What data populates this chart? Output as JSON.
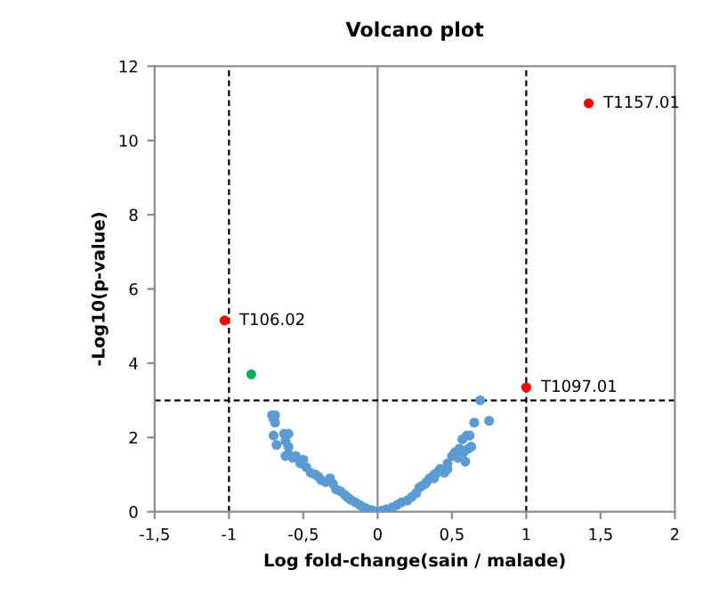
{
  "chart_data": {
    "type": "scatter",
    "title": "Volcano plot",
    "xlabel": "Log fold-change(sain / malade)",
    "ylabel": "-Log10(p-value)",
    "xlim": [
      -1.5,
      2
    ],
    "ylim": [
      0,
      12
    ],
    "xticks": [
      {
        "value": -1.5,
        "label": "-1,5"
      },
      -1,
      {
        "value": -0.5,
        "label": "-0,5"
      },
      0,
      {
        "value": 0.5,
        "label": "0,5"
      },
      1,
      {
        "value": 1.5,
        "label": "1,5"
      },
      2
    ],
    "yticks": [
      0,
      2,
      4,
      6,
      8,
      10,
      12
    ],
    "grid": false,
    "legend": false,
    "marker": "circle",
    "series": [
      {
        "color": "#5b9bd5",
        "x": [
          -0.71,
          -0.69,
          -0.7,
          -0.69,
          -0.7,
          -0.68,
          -0.63,
          -0.6,
          -0.62,
          -0.6,
          -0.6,
          -0.62,
          -0.57,
          -0.55,
          -0.52,
          -0.5,
          -0.48,
          -0.45,
          -0.42,
          -0.4,
          -0.38,
          -0.35,
          -0.32,
          -0.3,
          -0.28,
          -0.25,
          -0.22,
          -0.2,
          -0.18,
          -0.15,
          -0.12,
          -0.1,
          -0.08,
          -0.05,
          -0.03,
          0,
          0.03,
          0.06,
          0.1,
          0.13,
          0.16,
          0.2,
          0.23,
          0.26,
          0.28,
          0.3,
          0.33,
          0.35,
          0.38,
          0.4,
          0.42,
          0.45,
          0.47,
          0.5,
          0.52,
          0.55,
          0.54,
          0.58,
          0.6,
          0.62,
          0.61,
          0.63,
          0.57,
          0.59,
          0.65,
          0.69,
          0.75,
          0.47,
          0.38,
          0.32
        ],
        "values": [
          2.6,
          2.6,
          2.5,
          2.4,
          2.05,
          1.8,
          2.1,
          2.1,
          1.9,
          1.75,
          1.55,
          1.5,
          1.45,
          1.5,
          1.3,
          1.4,
          1.2,
          1.05,
          1.0,
          0.95,
          0.85,
          0.8,
          0.9,
          0.75,
          0.6,
          0.55,
          0.45,
          0.38,
          0.32,
          0.25,
          0.18,
          0.13,
          0.1,
          0.05,
          0.03,
          0,
          0.03,
          0.07,
          0.12,
          0.18,
          0.25,
          0.3,
          0.4,
          0.5,
          0.65,
          0.7,
          0.8,
          0.9,
          1.0,
          1.05,
          1.15,
          1.05,
          1.3,
          1.5,
          1.6,
          1.7,
          1.45,
          1.6,
          2.05,
          2.05,
          1.7,
          1.75,
          1.95,
          1.35,
          2.4,
          3.0,
          2.45,
          1.15,
          0.9,
          0.75
        ]
      },
      {
        "color": "#ff0000",
        "x": [
          -1.03,
          1.0,
          1.42
        ],
        "values": [
          5.15,
          3.35,
          11.0
        ]
      },
      {
        "color": "#00b050",
        "x": [
          -0.85
        ],
        "values": [
          3.7
        ]
      }
    ],
    "ref_lines": [
      {
        "axis": "x",
        "value": 0,
        "color": "#8c8c8c",
        "line_style": "solid"
      },
      {
        "axis": "x",
        "value": -1,
        "color": "#000000",
        "line_style": "dashed"
      },
      {
        "axis": "x",
        "value": 1,
        "color": "#000000",
        "line_style": "dashed"
      },
      {
        "axis": "y",
        "value": 3,
        "color": "#000000",
        "line_style": "dashed"
      }
    ],
    "annotations": [
      {
        "text": "T106.02",
        "x": -1.03,
        "y": 5.15
      },
      {
        "text": "T1097.01",
        "x": 1.0,
        "y": 3.35
      },
      {
        "text": "T1157.01",
        "x": 1.42,
        "y": 11.0
      }
    ]
  }
}
